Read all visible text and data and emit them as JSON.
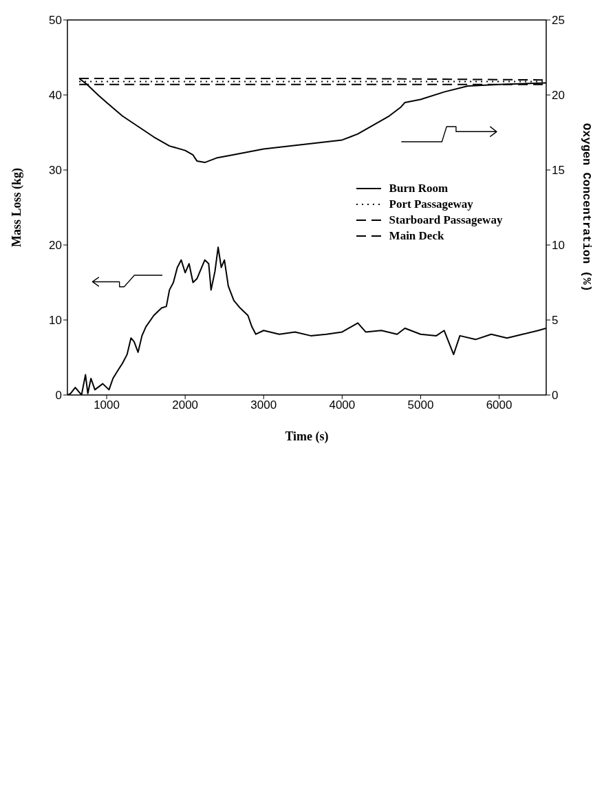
{
  "chart_data": {
    "type": "line",
    "xlabel": "Time (s)",
    "ylabel": "Mass Loss (kg)",
    "y2label": "Oxygen Concentration (%)",
    "xlim": [
      500,
      6600
    ],
    "xticks": [
      1000,
      2000,
      3000,
      4000,
      5000,
      6000
    ],
    "ylim": [
      0,
      50
    ],
    "yticks": [
      0,
      10,
      20,
      30,
      40,
      50
    ],
    "y2lim": [
      0,
      25
    ],
    "y2ticks": [
      0,
      5,
      10,
      15,
      20,
      25
    ],
    "legend": "right",
    "marker": "none",
    "series": [
      {
        "color": "#000000",
        "line_style": "solid",
        "axis": "y",
        "x": [
          500,
          540,
          600,
          680,
          730,
          760,
          800,
          850,
          950,
          1030,
          1080,
          1150,
          1200,
          1260,
          1310,
          1350,
          1400,
          1450,
          1500,
          1600,
          1700,
          1760,
          1800,
          1850,
          1900,
          1950,
          2000,
          2050,
          2100,
          2150,
          2250,
          2300,
          2330,
          2380,
          2420,
          2460,
          2500,
          2550,
          2620,
          2700,
          2800,
          2850,
          2900,
          3000,
          3200,
          3400,
          3600,
          3800,
          4000,
          4200,
          4300,
          4500,
          4700,
          4800,
          5000,
          5200,
          5300,
          5420,
          5500,
          5700,
          5900,
          6100,
          6300,
          6500,
          6600
        ],
        "values": [
          0,
          0.2,
          1,
          0,
          2.7,
          0.2,
          2.2,
          0.7,
          1.5,
          0.7,
          2.2,
          3.4,
          4.2,
          5.4,
          7.6,
          7.1,
          5.7,
          7.9,
          9.1,
          10.6,
          11.6,
          11.8,
          14,
          15,
          17,
          18,
          16.3,
          17.5,
          15,
          15.5,
          18,
          17.5,
          14,
          16.5,
          19.7,
          17,
          18,
          14.5,
          12.6,
          11.6,
          10.6,
          9.1,
          8.1,
          8.6,
          8.1,
          8.4,
          7.9,
          8.1,
          8.4,
          9.6,
          8.4,
          8.6,
          8.1,
          8.9,
          8.1,
          7.9,
          8.6,
          5.4,
          7.9,
          7.4,
          8.1,
          7.6,
          8.1,
          8.6,
          8.9
        ]
      },
      {
        "name": "Burn Room",
        "color": "#000000",
        "line_style": "solid",
        "axis": "y2",
        "x": [
          650,
          750,
          900,
          1000,
          1200,
          1400,
          1600,
          1800,
          2000,
          2100,
          2150,
          2250,
          2400,
          2600,
          3000,
          3500,
          4000,
          4200,
          4400,
          4600,
          4750,
          4800,
          5000,
          5300,
          5600,
          6000,
          6600
        ],
        "values": [
          21.1,
          20.7,
          19.95,
          19.5,
          18.6,
          17.9,
          17.2,
          16.6,
          16.3,
          16,
          15.6,
          15.5,
          15.8,
          16,
          16.4,
          16.7,
          17,
          17.4,
          18,
          18.6,
          19.2,
          19.5,
          19.7,
          20.2,
          20.6,
          20.7,
          20.8
        ]
      },
      {
        "name": "Port Passageway",
        "color": "#000000",
        "line_style": "dotted",
        "axis": "y2",
        "x": [
          650,
          2000,
          4000,
          6600
        ],
        "values": [
          20.9,
          20.9,
          20.9,
          20.9
        ]
      },
      {
        "name": "Starboard Passageway",
        "color": "#000000",
        "line_style": "dashed",
        "axis": "y2",
        "x": [
          650,
          2000,
          4000,
          6600
        ],
        "values": [
          21.1,
          21.1,
          21.1,
          21.0
        ]
      },
      {
        "name": "Main Deck",
        "color": "#000000",
        "line_style": "dashed",
        "axis": "y2",
        "x": [
          650,
          2000,
          4000,
          6600
        ],
        "values": [
          20.7,
          20.7,
          20.7,
          20.7
        ]
      }
    ]
  }
}
